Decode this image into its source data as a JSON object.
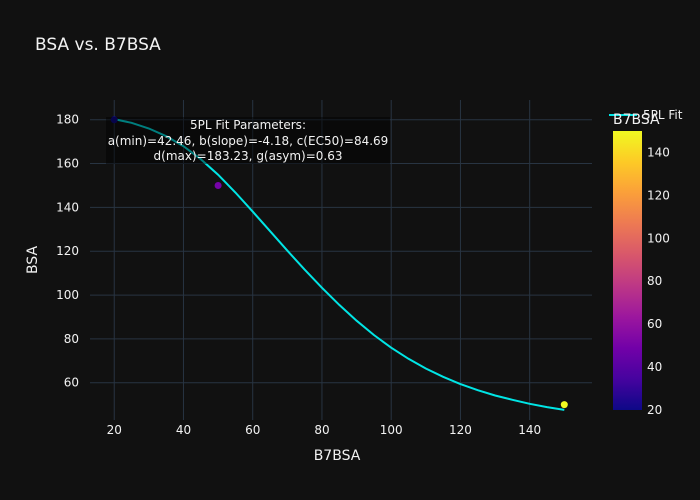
{
  "chart_data": {
    "type": "scatter",
    "title": "BSA vs. B7BSA",
    "xlabel": "B7BSA",
    "ylabel": "BSA",
    "xlim": [
      13,
      158
    ],
    "ylim": [
      43,
      189
    ],
    "xticks": [
      20,
      40,
      60,
      80,
      100,
      120,
      140
    ],
    "yticks": [
      60,
      80,
      100,
      120,
      140,
      160,
      180
    ],
    "grid": true,
    "background": "#111111",
    "series": [
      {
        "kind": "markers",
        "x": [
          20,
          50,
          150
        ],
        "y": [
          180,
          150,
          50
        ],
        "color_values": [
          20,
          50,
          150
        ]
      },
      {
        "kind": "line",
        "name": "5PL Fit",
        "color": "#00e5e5",
        "x": [
          20,
          25,
          30,
          35,
          40,
          45,
          50,
          55,
          60,
          65,
          70,
          75,
          80,
          85,
          90,
          95,
          100,
          105,
          110,
          115,
          120,
          125,
          130,
          135,
          140,
          145,
          150
        ],
        "y": [
          180.3,
          178.6,
          176.0,
          172.5,
          167.9,
          162.0,
          154.9,
          146.8,
          138.1,
          129.2,
          120.3,
          111.6,
          103.3,
          95.5,
          88.3,
          81.8,
          76.0,
          70.9,
          66.5,
          62.7,
          59.4,
          56.6,
          54.2,
          52.2,
          50.4,
          48.9,
          47.6
        ]
      }
    ],
    "colorbar": {
      "title": "B7BSA",
      "range": [
        20,
        150
      ],
      "ticks": [
        20,
        40,
        60,
        80,
        100,
        120,
        140
      ],
      "colorscale": [
        "#0d0887",
        "#46039f",
        "#7201a8",
        "#9c179e",
        "#bd3786",
        "#d8576b",
        "#ed7953",
        "#fb9f3a",
        "#fdca26",
        "#f0f921"
      ]
    },
    "legend": {
      "position": "top-right",
      "entries": [
        "5PL Fit"
      ]
    },
    "annotation": {
      "lines": [
        "5PL Fit Parameters:",
        "a(min)=42.46, b(slope)=-4.18, c(EC50)=84.69",
        "d(max)=183.23, g(asym)=0.63"
      ]
    }
  }
}
